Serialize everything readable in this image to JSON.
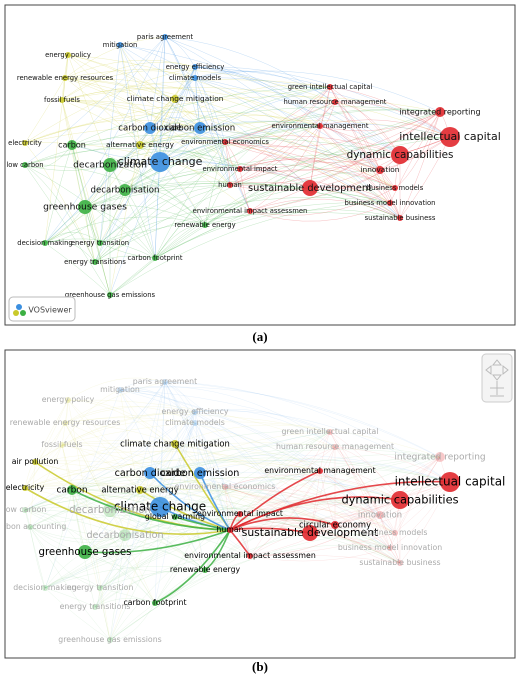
{
  "panels": [
    {
      "caption": "(a)",
      "logo": "VOSviewer"
    },
    {
      "caption": "(b)"
    }
  ],
  "clusters": [
    {
      "color": "#c9c92a",
      "nodes": [
        {
          "label": "energy policy",
          "show_a": true,
          "focus_b": false
        },
        {
          "label": "renewable energy resources",
          "show_a": true,
          "focus_b": false
        },
        {
          "label": "fossil fuels",
          "show_a": true,
          "focus_b": false
        },
        {
          "label": "electricity",
          "show_a": true,
          "focus_b": true
        },
        {
          "label": "alternative energy",
          "show_a": true,
          "focus_b": true
        },
        {
          "label": "climate change mitigation",
          "show_a": true,
          "focus_b": true
        },
        {
          "label": "air pollution",
          "show_a": false,
          "focus_b": true
        }
      ]
    },
    {
      "color": "#3b8fe0",
      "nodes": [
        {
          "label": "mitigation",
          "show_a": true,
          "focus_b": false
        },
        {
          "label": "paris agreement",
          "show_a": true,
          "focus_b": false
        },
        {
          "label": "energy efficiency",
          "show_a": true,
          "focus_b": false
        },
        {
          "label": "climate models",
          "show_a": true,
          "focus_b": false
        },
        {
          "label": "carbon dioxide",
          "show_a": true,
          "focus_b": true
        },
        {
          "label": "carbon emission",
          "show_a": true,
          "focus_b": true
        },
        {
          "label": "climate change",
          "show_a": true,
          "focus_b": true
        }
      ]
    },
    {
      "color": "#3cb043",
      "nodes": [
        {
          "label": "carbon",
          "show_a": true,
          "focus_b": true
        },
        {
          "label": "decarbonization",
          "show_a": true,
          "focus_b": false
        },
        {
          "label": "decarbonisation",
          "show_a": true,
          "focus_b": false
        },
        {
          "label": "low carbon",
          "show_a": true,
          "focus_b": false
        },
        {
          "label": "greenhouse gases",
          "show_a": true,
          "focus_b": true
        },
        {
          "label": "decision making",
          "show_a": true,
          "focus_b": false
        },
        {
          "label": "energy transition",
          "show_a": true,
          "focus_b": false
        },
        {
          "label": "energy transitions",
          "show_a": true,
          "focus_b": false
        },
        {
          "label": "carbon footprint",
          "show_a": true,
          "focus_b": true
        },
        {
          "label": "renewable energy",
          "show_a": true,
          "focus_b": true
        },
        {
          "label": "greenhouse gas emissions",
          "show_a": true,
          "focus_b": false
        },
        {
          "label": "global warming",
          "show_a": false,
          "focus_b": true
        },
        {
          "label": "carbon accounting",
          "show_a": false,
          "focus_b": false
        }
      ]
    },
    {
      "color": "#e1282d",
      "nodes": [
        {
          "label": "green intellectual capital",
          "show_a": true,
          "focus_b": false
        },
        {
          "label": "human resource management",
          "show_a": true,
          "focus_b": false
        },
        {
          "label": "integrated reporting",
          "show_a": true,
          "focus_b": false
        },
        {
          "label": "environmental management",
          "show_a": true,
          "focus_b": true
        },
        {
          "label": "intellectual capital",
          "show_a": true,
          "focus_b": true
        },
        {
          "label": "environmental economics",
          "show_a": true,
          "focus_b": false
        },
        {
          "label": "dynamic capabilities",
          "show_a": true,
          "focus_b": true
        },
        {
          "label": "environmental impact",
          "show_a": true,
          "focus_b": true
        },
        {
          "label": "innovation",
          "show_a": true,
          "focus_b": false
        },
        {
          "label": "human",
          "show_a": true,
          "focus_b": true
        },
        {
          "label": "sustainable development",
          "show_a": true,
          "focus_b": true
        },
        {
          "label": "business models",
          "show_a": true,
          "focus_b": false
        },
        {
          "label": "business model innovation",
          "show_a": true,
          "focus_b": false
        },
        {
          "label": "environmental impact assessmen",
          "show_a": true,
          "focus_b": true
        },
        {
          "label": "sustainable business",
          "show_a": true,
          "focus_b": false
        },
        {
          "label": "circular economy",
          "show_a": false,
          "focus_b": true
        }
      ]
    }
  ]
}
